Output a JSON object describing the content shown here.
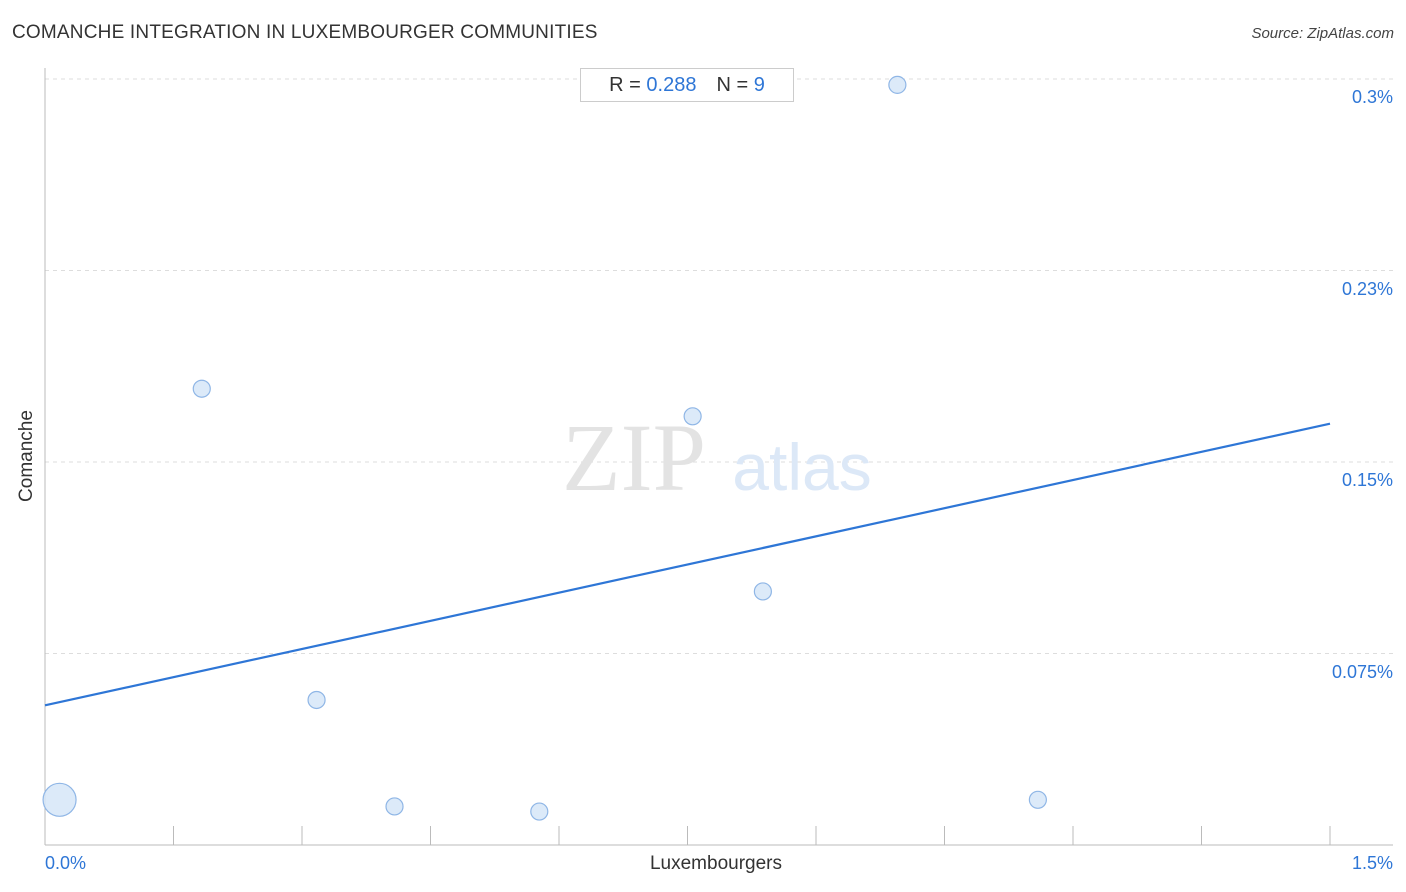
{
  "title": "COMANCHE INTEGRATION IN LUXEMBOURGER COMMUNITIES",
  "source": "Source: ZipAtlas.com",
  "stats": {
    "r_label": "R =",
    "r_value": "0.288",
    "n_label": "N =",
    "n_value": "9"
  },
  "watermark": {
    "zip": "ZIP",
    "atlas": "atlas"
  },
  "colors": {
    "accent": "#2e76d6",
    "point_fill": "#d6e6f8",
    "point_stroke": "#8fb6e6",
    "grid": "#dddddd",
    "axis": "#bbbbbb"
  },
  "chart_data": {
    "type": "scatter",
    "xlabel": "Luxembourgers",
    "ylabel": "Comanche",
    "xlim": [
      0,
      1.5
    ],
    "ylim": [
      0,
      0.3
    ],
    "x_ticks": [
      {
        "value": 0,
        "label": "0.0%"
      },
      {
        "value": 1.5,
        "label": "1.5%"
      }
    ],
    "y_ticks": [
      {
        "value": 0.3,
        "label": "0.3%"
      },
      {
        "value": 0.225,
        "label": "0.23%"
      },
      {
        "value": 0.15,
        "label": "0.15%"
      },
      {
        "value": 0.075,
        "label": "0.075%"
      }
    ],
    "grid": true,
    "points": [
      {
        "x": 0.017,
        "y": 0.0177,
        "size": 3
      },
      {
        "x": 0.183,
        "y": 0.1787,
        "size": 1
      },
      {
        "x": 0.317,
        "y": 0.0568,
        "size": 1
      },
      {
        "x": 0.408,
        "y": 0.0151,
        "size": 1
      },
      {
        "x": 0.577,
        "y": 0.0131,
        "size": 1
      },
      {
        "x": 0.756,
        "y": 0.1679,
        "size": 1
      },
      {
        "x": 0.838,
        "y": 0.0993,
        "size": 1
      },
      {
        "x": 0.995,
        "y": 0.2977,
        "size": 1
      },
      {
        "x": 1.159,
        "y": 0.0177,
        "size": 1
      }
    ],
    "trendline": {
      "x": [
        0,
        1.5
      ],
      "y": [
        0.0547,
        0.165
      ]
    }
  }
}
